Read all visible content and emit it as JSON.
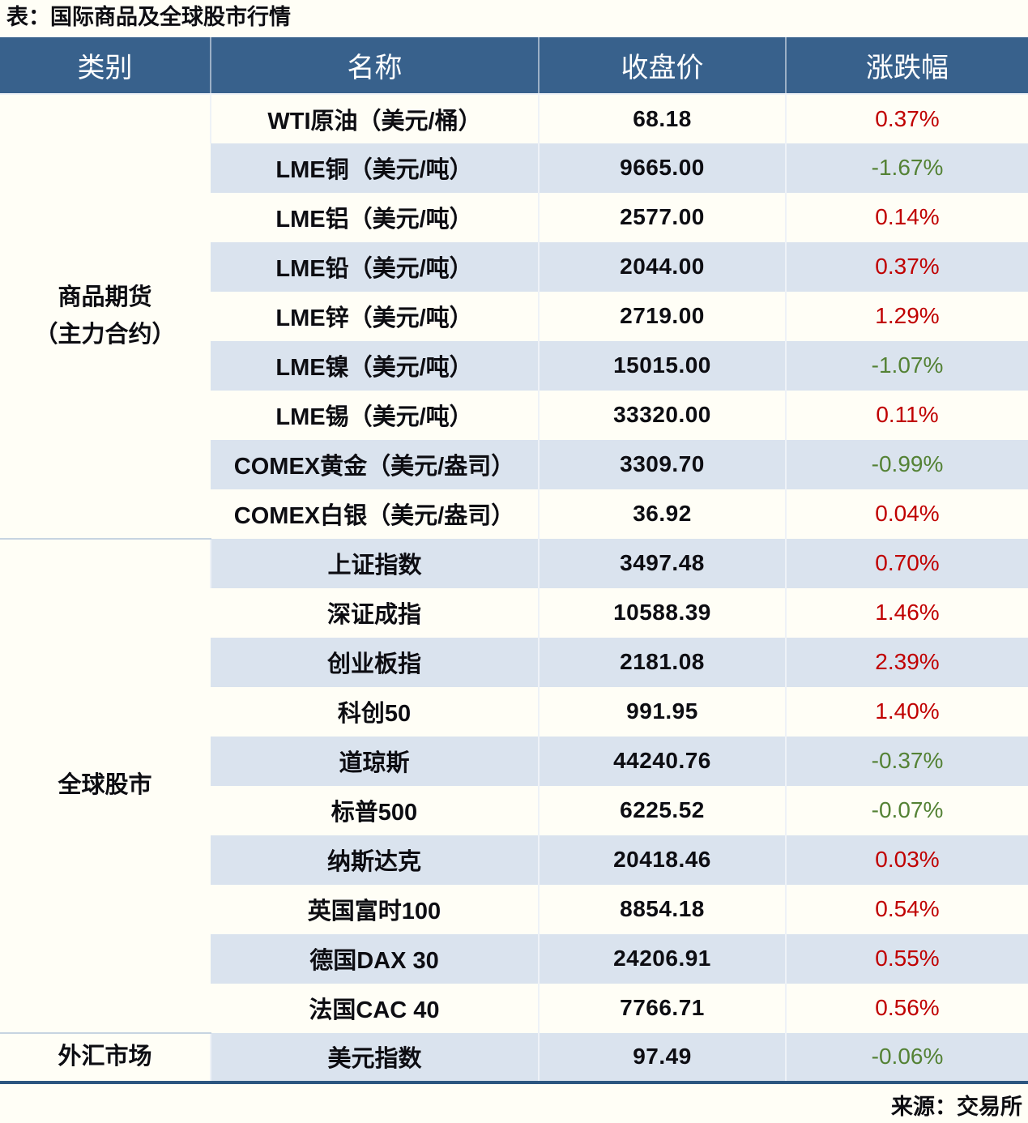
{
  "page": {
    "title": "表：国际商品及全球股市行情",
    "source": "来源：交易所"
  },
  "table": {
    "columns": [
      "类别",
      "名称",
      "收盘价",
      "涨跌幅"
    ],
    "sections": [
      {
        "category": "商品期货\n（主力合约）",
        "rows": [
          {
            "name": "WTI原油（美元/桶）",
            "close": "68.18",
            "change": "0.37%"
          },
          {
            "name": "LME铜（美元/吨）",
            "close": "9665.00",
            "change": "-1.67%"
          },
          {
            "name": "LME铝（美元/吨）",
            "close": "2577.00",
            "change": "0.14%"
          },
          {
            "name": "LME铅（美元/吨）",
            "close": "2044.00",
            "change": "0.37%"
          },
          {
            "name": "LME锌（美元/吨）",
            "close": "2719.00",
            "change": "1.29%"
          },
          {
            "name": "LME镍（美元/吨）",
            "close": "15015.00",
            "change": "-1.07%"
          },
          {
            "name": "LME锡（美元/吨）",
            "close": "33320.00",
            "change": "0.11%"
          },
          {
            "name": "COMEX黄金（美元/盎司）",
            "close": "3309.70",
            "change": "-0.99%"
          },
          {
            "name": "COMEX白银（美元/盎司）",
            "close": "36.92",
            "change": "0.04%"
          }
        ]
      },
      {
        "category": "全球股市",
        "rows": [
          {
            "name": "上证指数",
            "close": "3497.48",
            "change": "0.70%"
          },
          {
            "name": "深证成指",
            "close": "10588.39",
            "change": "1.46%"
          },
          {
            "name": "创业板指",
            "close": "2181.08",
            "change": "2.39%"
          },
          {
            "name": "科创50",
            "close": "991.95",
            "change": "1.40%"
          },
          {
            "name": "道琼斯",
            "close": "44240.76",
            "change": "-0.37%"
          },
          {
            "name": "标普500",
            "close": "6225.52",
            "change": "-0.07%"
          },
          {
            "name": "纳斯达克",
            "close": "20418.46",
            "change": "0.03%"
          },
          {
            "name": "英国富时100",
            "close": "8854.18",
            "change": "0.54%"
          },
          {
            "name": "德国DAX 30",
            "close": "24206.91",
            "change": "0.55%"
          },
          {
            "name": "法国CAC 40",
            "close": "7766.71",
            "change": "0.56%"
          }
        ]
      },
      {
        "category": "外汇市场",
        "rows": [
          {
            "name": "美元指数",
            "close": "97.49",
            "change": "-0.06%"
          }
        ]
      }
    ]
  },
  "chart_data": {
    "type": "table",
    "title": "表：国际商品及全球股市行情",
    "columns": [
      "类别",
      "名称",
      "收盘价",
      "涨跌幅"
    ],
    "rows": [
      [
        "商品期货（主力合约）",
        "WTI原油（美元/桶）",
        68.18,
        "0.37%"
      ],
      [
        "商品期货（主力合约）",
        "LME铜（美元/吨）",
        9665.0,
        "-1.67%"
      ],
      [
        "商品期货（主力合约）",
        "LME铝（美元/吨）",
        2577.0,
        "0.14%"
      ],
      [
        "商品期货（主力合约）",
        "LME铅（美元/吨）",
        2044.0,
        "0.37%"
      ],
      [
        "商品期货（主力合约）",
        "LME锌（美元/吨）",
        2719.0,
        "1.29%"
      ],
      [
        "商品期货（主力合约）",
        "LME镍（美元/吨）",
        15015.0,
        "-1.07%"
      ],
      [
        "商品期货（主力合约）",
        "LME锡（美元/吨）",
        33320.0,
        "0.11%"
      ],
      [
        "商品期货（主力合约）",
        "COMEX黄金（美元/盎司）",
        3309.7,
        "-0.99%"
      ],
      [
        "商品期货（主力合约）",
        "COMEX白银（美元/盎司）",
        36.92,
        "0.04%"
      ],
      [
        "全球股市",
        "上证指数",
        3497.48,
        "0.70%"
      ],
      [
        "全球股市",
        "深证成指",
        10588.39,
        "1.46%"
      ],
      [
        "全球股市",
        "创业板指",
        2181.08,
        "2.39%"
      ],
      [
        "全球股市",
        "科创50",
        991.95,
        "1.40%"
      ],
      [
        "全球股市",
        "道琼斯",
        44240.76,
        "-0.37%"
      ],
      [
        "全球股市",
        "标普500",
        6225.52,
        "-0.07%"
      ],
      [
        "全球股市",
        "纳斯达克",
        20418.46,
        "0.03%"
      ],
      [
        "全球股市",
        "英国富时100",
        8854.18,
        "0.54%"
      ],
      [
        "全球股市",
        "德国DAX 30",
        24206.91,
        "0.55%"
      ],
      [
        "全球股市",
        "法国CAC 40",
        7766.71,
        "0.56%"
      ],
      [
        "外汇市场",
        "美元指数",
        97.49,
        "-0.06%"
      ]
    ],
    "notes": "red = rise (positive change), green = fall (negative change)"
  },
  "colors": {
    "header_bg": "#38618C",
    "header_text": "#FFFFFF",
    "row_alt_bg": "#DAE3EE",
    "page_bg": "#FFFEF6",
    "text": "#0D0D12",
    "up": "#C00000",
    "down": "#548235",
    "bottom_border": "#2C5680",
    "section_divider": "#C7D4E1"
  }
}
